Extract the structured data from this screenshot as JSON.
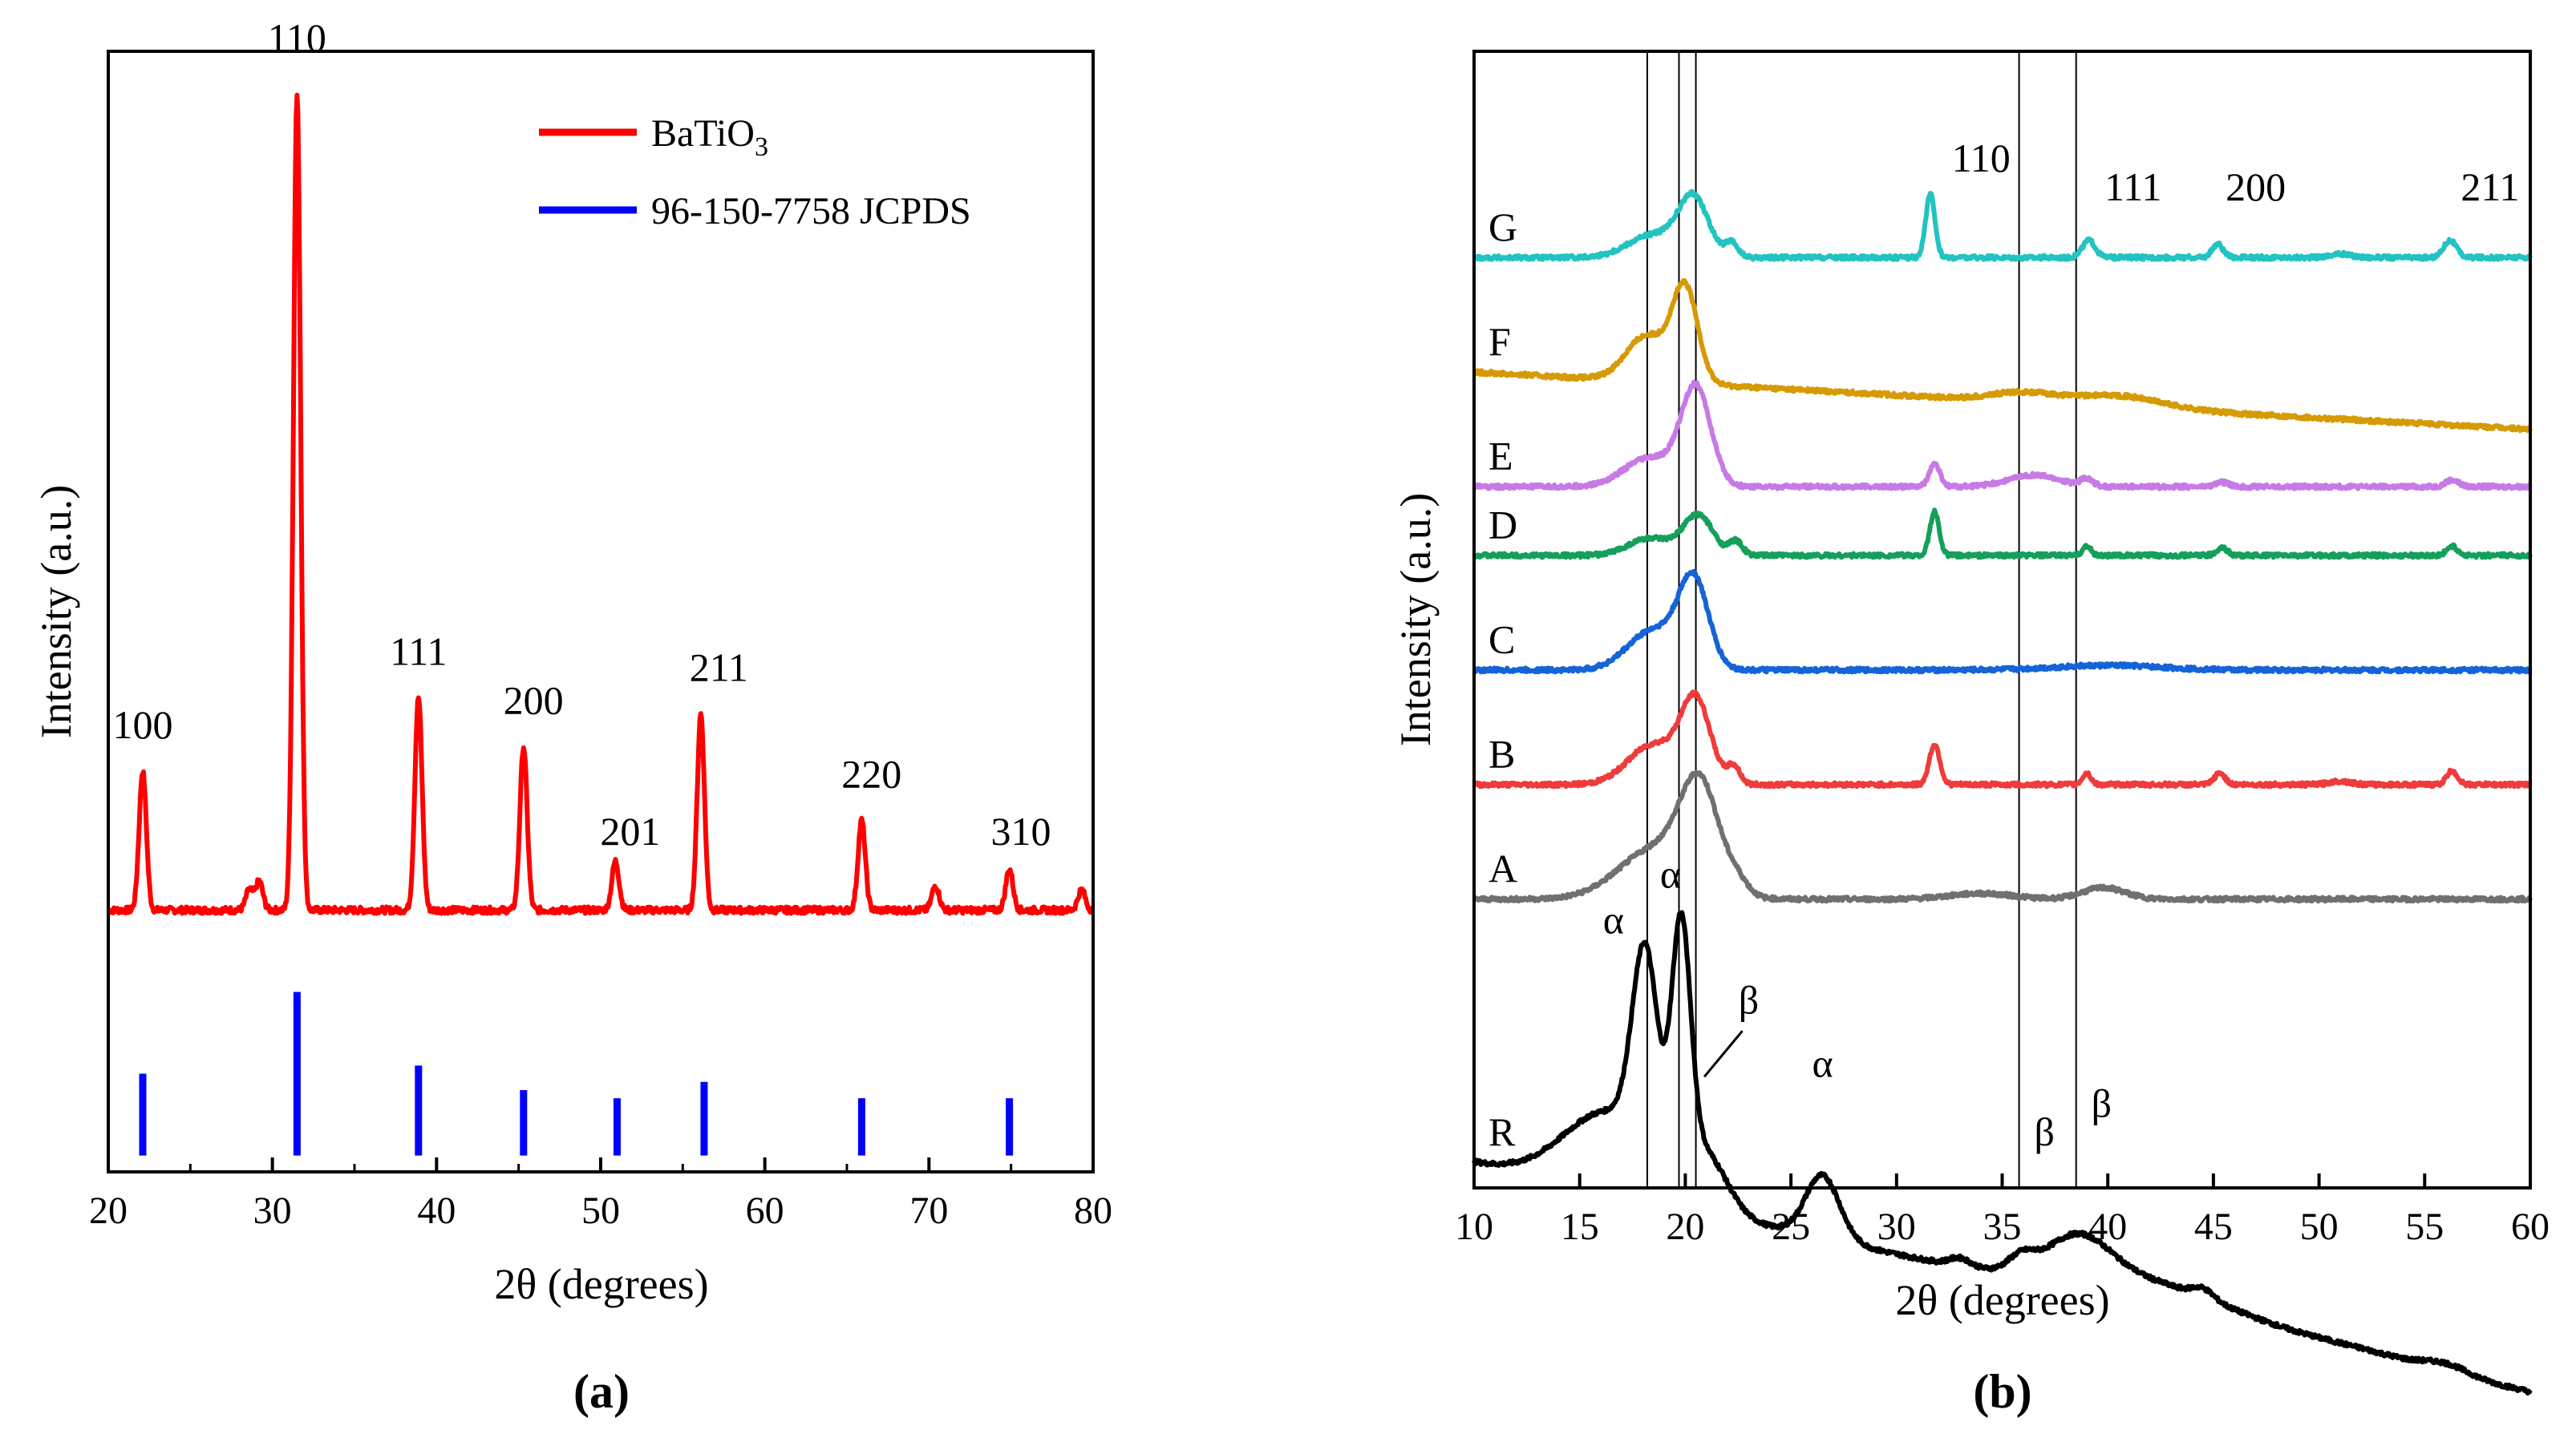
{
  "colors": {
    "batio3": "#ff0000",
    "jcpds": "#0000ff",
    "G": "#22c3c0",
    "F": "#d69a05",
    "E": "#c77ae6",
    "D": "#14a05a",
    "C": "#1464d8",
    "B": "#ef3b3b",
    "A": "#707070",
    "R": "#000000",
    "guide": "#000000"
  },
  "chart_data": [
    {
      "type": "line",
      "panel": "(a)",
      "xlabel": "2θ (degrees)",
      "ylabel": "Intensity (a.u.)",
      "xlim": [
        20,
        80
      ],
      "ylim": [
        -0.32,
        1.05
      ],
      "xticks": [
        20,
        30,
        40,
        50,
        60,
        70,
        80
      ],
      "legend": [
        {
          "name": "BaTiO",
          "sub": "3",
          "color": "#ff0000",
          "kind": "line"
        },
        {
          "name": "96-150-7758 JCPDS",
          "sub": "",
          "color": "#0000ff",
          "kind": "bar"
        }
      ],
      "series": [
        {
          "name": "BaTiO3",
          "baseline": 0.0,
          "peaks": [
            [
              22.1,
              0.17
            ],
            [
              28.6,
              0.025
            ],
            [
              29.2,
              0.035
            ],
            [
              31.5,
              1.0
            ],
            [
              38.9,
              0.26
            ],
            [
              45.3,
              0.2
            ],
            [
              50.9,
              0.06
            ],
            [
              56.1,
              0.24
            ],
            [
              65.9,
              0.11
            ],
            [
              70.4,
              0.03
            ],
            [
              74.9,
              0.05
            ],
            [
              79.3,
              0.025
            ]
          ]
        }
      ],
      "reference_bars": [
        [
          22.1,
          0.1
        ],
        [
          31.5,
          0.2
        ],
        [
          38.9,
          0.11
        ],
        [
          45.3,
          0.08
        ],
        [
          51.0,
          0.07
        ],
        [
          56.3,
          0.09
        ],
        [
          65.9,
          0.07
        ],
        [
          74.9,
          0.07
        ]
      ],
      "annotations": [
        {
          "text": "100",
          "x": 22.1,
          "y": 0.21
        },
        {
          "text": "110",
          "x": 31.5,
          "y": 1.05
        },
        {
          "text": "111",
          "x": 38.9,
          "y": 0.3
        },
        {
          "text": "200",
          "x": 45.9,
          "y": 0.24
        },
        {
          "text": "201",
          "x": 51.8,
          "y": 0.08
        },
        {
          "text": "211",
          "x": 57.2,
          "y": 0.28
        },
        {
          "text": "220",
          "x": 66.5,
          "y": 0.15
        },
        {
          "text": "310",
          "x": 75.6,
          "y": 0.08
        }
      ]
    },
    {
      "type": "line",
      "panel": "(b)",
      "xlabel": "2θ (degrees)",
      "ylabel": "Intensity (a.u.)",
      "xlim": [
        10,
        60
      ],
      "ylim": [
        -0.02,
        9.9
      ],
      "xticks": [
        10,
        15,
        20,
        25,
        30,
        35,
        40,
        45,
        50,
        55,
        60
      ],
      "guide_lines_x": [
        18.2,
        19.7,
        20.5,
        35.8,
        38.5
      ],
      "series": [
        {
          "name": "R",
          "label": "R",
          "offset": 0.2,
          "slope": -0.004,
          "peaks": [
            [
              18.1,
              1.7,
              0.6
            ],
            [
              19.8,
              2.1,
              0.45
            ],
            [
              16.5,
              0.7,
              2.2
            ],
            [
              21.0,
              0.45,
              1.0
            ],
            [
              26.5,
              0.55,
              0.8
            ],
            [
              33.0,
              0.07,
              0.5
            ],
            [
              35.9,
              0.12,
              0.6
            ],
            [
              38.6,
              0.35,
              1.5
            ],
            [
              42.0,
              0.25,
              4.0
            ],
            [
              44.5,
              0.08,
              0.5
            ],
            [
              52.0,
              0.05,
              3.0
            ],
            [
              56.0,
              0.07,
              1.0
            ]
          ]
        },
        {
          "name": "A",
          "label": "A",
          "offset": 2.5,
          "slope": 0,
          "peaks": [
            [
              18.7,
              0.45,
              1.8
            ],
            [
              20.7,
              0.85,
              0.9
            ],
            [
              22.5,
              0.1,
              0.5
            ],
            [
              34.0,
              0.05,
              1.5
            ],
            [
              39.8,
              0.1,
              1.0
            ]
          ]
        },
        {
          "name": "B",
          "label": "B",
          "offset": 3.5,
          "slope": 0,
          "peaks": [
            [
              18.5,
              0.35,
              1.2
            ],
            [
              20.5,
              0.7,
              0.7
            ],
            [
              22.3,
              0.15,
              0.3
            ],
            [
              31.8,
              0.35,
              0.25
            ],
            [
              39.0,
              0.1,
              0.2
            ],
            [
              45.3,
              0.1,
              0.25
            ],
            [
              51.0,
              0.03,
              0.5
            ],
            [
              56.3,
              0.12,
              0.25
            ]
          ]
        },
        {
          "name": "C",
          "label": "C",
          "offset": 4.5,
          "slope": 0,
          "peaks": [
            [
              18.5,
              0.35,
              1.2
            ],
            [
              20.4,
              0.75,
              0.7
            ],
            [
              40.0,
              0.04,
              2.5
            ]
          ]
        },
        {
          "name": "D",
          "label": "D",
          "offset": 5.5,
          "slope": 0,
          "peaks": [
            [
              18.3,
              0.15,
              1.0
            ],
            [
              20.6,
              0.35,
              0.7
            ],
            [
              22.4,
              0.12,
              0.3
            ],
            [
              31.8,
              0.38,
              0.22
            ],
            [
              39.0,
              0.08,
              0.2
            ],
            [
              45.4,
              0.07,
              0.25
            ],
            [
              56.3,
              0.08,
              0.25
            ]
          ]
        },
        {
          "name": "E",
          "label": "E",
          "offset": 6.1,
          "slope": 0,
          "peaks": [
            [
              18.3,
              0.25,
              1.2
            ],
            [
              20.5,
              0.85,
              0.7
            ],
            [
              31.8,
              0.2,
              0.25
            ],
            [
              36.5,
              0.1,
              1.2
            ],
            [
              39.0,
              0.06,
              0.3
            ],
            [
              45.4,
              0.04,
              0.3
            ],
            [
              56.3,
              0.06,
              0.3
            ]
          ]
        },
        {
          "name": "F",
          "label": "F",
          "offset": 7.1,
          "slope": -0.001,
          "peaks": [
            [
              18.2,
              0.4,
              1.0
            ],
            [
              20.0,
              0.8,
              0.6
            ],
            [
              36.0,
              0.08,
              1.5
            ],
            [
              40.5,
              0.1,
              2.0
            ]
          ]
        },
        {
          "name": "G",
          "label": "G",
          "offset": 8.1,
          "slope": 0,
          "peaks": [
            [
              18.5,
              0.2,
              1.2
            ],
            [
              20.4,
              0.5,
              0.7
            ],
            [
              22.2,
              0.12,
              0.3
            ],
            [
              31.6,
              0.55,
              0.22
            ],
            [
              39.1,
              0.15,
              0.3
            ],
            [
              45.2,
              0.12,
              0.25
            ],
            [
              51.0,
              0.03,
              0.5
            ],
            [
              56.2,
              0.15,
              0.3
            ]
          ]
        }
      ],
      "annotations": [
        {
          "text": "110",
          "x": 34.0,
          "y": 8.85
        },
        {
          "text": "111",
          "x": 41.2,
          "y": 8.6
        },
        {
          "text": "200",
          "x": 47.0,
          "y": 8.6
        },
        {
          "text": "211",
          "x": 58.1,
          "y": 8.6
        },
        {
          "text": "α",
          "x": 16.6,
          "y": 2.2
        },
        {
          "text": "α",
          "x": 19.3,
          "y": 2.6
        },
        {
          "text": "β",
          "x": 23.0,
          "y": 1.5
        },
        {
          "text": "α",
          "x": 26.5,
          "y": 0.95
        },
        {
          "text": "β",
          "x": 37.0,
          "y": 0.35
        },
        {
          "text": "β",
          "x": 39.7,
          "y": 0.6
        }
      ]
    }
  ]
}
